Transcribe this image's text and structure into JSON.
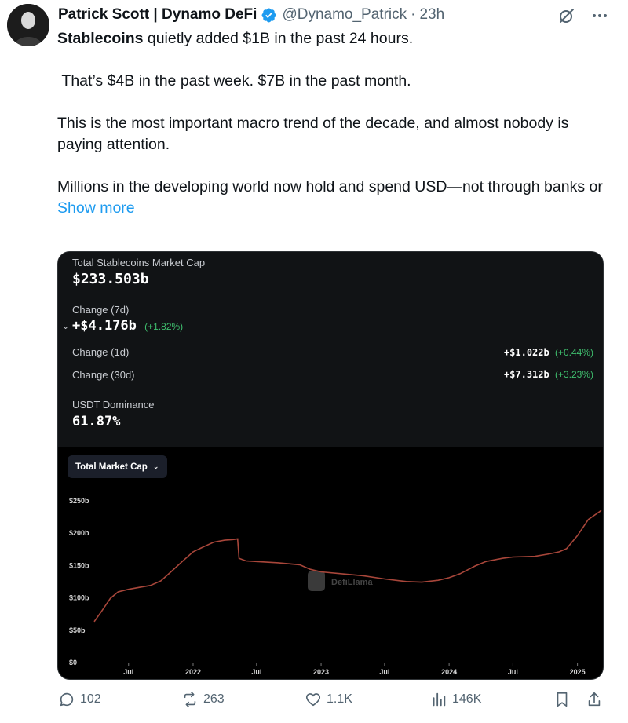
{
  "tweet": {
    "author_name": "Patrick Scott | Dynamo DeFi",
    "handle": "@Dynamo_Patrick",
    "separator": "·",
    "time": "23h",
    "avatar_icon": "person-avatar",
    "verified_color": "#1d9bf0",
    "paragraphs": [
      {
        "bold": "Stablecoins",
        "text": " quietly added $1B in the past 24 hours."
      },
      {
        "bold": "",
        "text": " That’s $4B in the past week. $7B in the past month."
      },
      {
        "bold": "",
        "text": "This is the most important macro trend of the decade, and almost nobody is paying attention."
      },
      {
        "bold": "",
        "text": "Millions in the developing world now hold and spend USD—not through banks or"
      }
    ],
    "show_more": "Show more",
    "link_color": "#1d9bf0"
  },
  "media": {
    "total_label": "Total Stablecoins Market Cap",
    "total_value": "$233.503b",
    "change7d_label": "Change (7d)",
    "change7d_value": "+$4.176b",
    "change7d_pct": "(+1.82%)",
    "change1d_label": "Change (1d)",
    "change1d_value": "+$1.022b",
    "change1d_pct": "(+0.44%)",
    "change30d_label": "Change (30d)",
    "change30d_value": "+$7.312b",
    "change30d_pct": "(+3.23%)",
    "usdt_label": "USDT Dominance",
    "usdt_value": "61.87%",
    "dropdown_label": "Total Market Cap",
    "watermark": "DefiLlama",
    "positive_color": "#3fbf6e"
  },
  "chart_data": {
    "type": "line",
    "title": "",
    "xlabel": "",
    "ylabel": "",
    "line_color": "#a8463a",
    "grid": false,
    "ylim": [
      0,
      250
    ],
    "y_ticks": [
      "$0",
      "$50b",
      "$100b",
      "$150b",
      "$200b",
      "$250b"
    ],
    "x_ticks": [
      "Jul",
      "2022",
      "Jul",
      "2023",
      "Jul",
      "2024",
      "Jul",
      "2025"
    ],
    "x_tick_dates": [
      "2021-07-01",
      "2022-01-01",
      "2022-07-01",
      "2023-01-01",
      "2023-07-01",
      "2024-01-01",
      "2024-07-01",
      "2025-01-01"
    ],
    "xlim": [
      "2021-03-25",
      "2025-03-10"
    ],
    "series": [
      {
        "x": [
          "2021-03-25",
          "2021-04-15",
          "2021-05-10",
          "2021-06-01",
          "2021-07-01",
          "2021-08-01",
          "2021-09-01",
          "2021-10-01",
          "2021-11-01",
          "2021-12-01",
          "2022-01-01",
          "2022-02-01",
          "2022-03-01",
          "2022-04-01",
          "2022-04-25",
          "2022-05-08",
          "2022-05-12",
          "2022-06-01",
          "2022-07-01",
          "2022-09-01",
          "2022-11-01",
          "2022-12-01",
          "2023-01-01",
          "2023-03-01",
          "2023-05-01",
          "2023-07-01",
          "2023-09-01",
          "2023-10-15",
          "2023-12-01",
          "2024-01-01",
          "2024-02-01",
          "2024-03-15",
          "2024-04-15",
          "2024-06-01",
          "2024-07-01",
          "2024-09-01",
          "2024-10-15",
          "2024-11-10",
          "2024-12-01",
          "2025-01-01",
          "2025-02-01",
          "2025-03-10"
        ],
        "values": [
          62,
          78,
          98,
          108,
          112,
          115,
          118,
          125,
          140,
          155,
          170,
          178,
          185,
          188,
          189,
          190,
          160,
          156,
          155,
          153,
          150,
          143,
          139,
          136,
          133,
          128,
          124,
          123,
          126,
          130,
          136,
          148,
          155,
          160,
          162,
          163,
          167,
          170,
          175,
          195,
          220,
          234
        ]
      }
    ]
  },
  "actions": {
    "reply_count": "102",
    "retweet_count": "263",
    "like_count": "1.1K",
    "views_count": "146K"
  }
}
